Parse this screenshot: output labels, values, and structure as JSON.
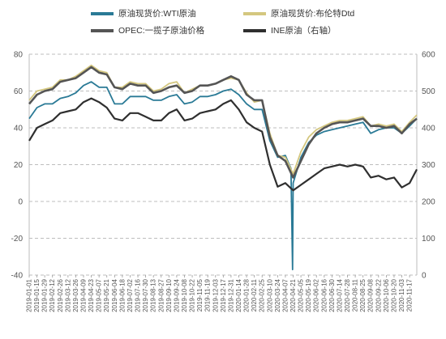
{
  "chart_data": {
    "type": "line",
    "title": "",
    "xlabel": "",
    "ylabel": "",
    "ylim": [
      -40,
      80
    ],
    "y2lim": [
      0,
      600
    ],
    "y_ticks": [
      80,
      60,
      40,
      20,
      0,
      -20,
      -40
    ],
    "y2_ticks": [
      600,
      500,
      400,
      300,
      200,
      100,
      0
    ],
    "grid": "horizontal dashed",
    "legend_position": "top",
    "x_ticks": [
      "2019-01-01",
      "2019-01-15",
      "2019-01-29",
      "2019-02-12",
      "2019-02-26",
      "2019-03-12",
      "2019-03-26",
      "2019-04-09",
      "2019-04-23",
      "2019-05-07",
      "2019-05-21",
      "2019-06-04",
      "2019-06-18",
      "2019-07-02",
      "2019-07-16",
      "2019-07-30",
      "2019-08-13",
      "2019-08-27",
      "2019-09-10",
      "2019-09-24",
      "2019-10-08",
      "2019-10-22",
      "2019-11-05",
      "2019-11-19",
      "2019-12-03",
      "2019-12-17",
      "2019-12-31",
      "2020-01-14",
      "2020-01-28",
      "2020-02-11",
      "2020-02-25",
      "2020-03-10",
      "2020-03-24",
      "2020-04-07",
      "2020-04-21",
      "2020-05-05",
      "2020-05-19",
      "2020-06-02",
      "2020-06-16",
      "2020-06-30",
      "2020-07-14",
      "2020-07-28",
      "2020-08-11",
      "2020-08-25",
      "2020-09-08",
      "2020-09-22",
      "2020-10-06",
      "2020-10-20",
      "2020-11-03",
      "2020-11-17"
    ],
    "series": [
      {
        "name": "原油现货价:WTI原油",
        "axis": "left",
        "color": "#2a7a96",
        "width": 1.8,
        "points": [
          [
            "2019-01-01",
            45
          ],
          [
            "2019-01-15",
            51
          ],
          [
            "2019-01-29",
            53
          ],
          [
            "2019-02-12",
            53
          ],
          [
            "2019-02-26",
            56
          ],
          [
            "2019-03-12",
            57
          ],
          [
            "2019-03-26",
            59
          ],
          [
            "2019-04-09",
            63
          ],
          [
            "2019-04-23",
            65
          ],
          [
            "2019-05-07",
            62
          ],
          [
            "2019-05-21",
            62
          ],
          [
            "2019-06-04",
            53
          ],
          [
            "2019-06-18",
            53
          ],
          [
            "2019-07-02",
            57
          ],
          [
            "2019-07-16",
            57
          ],
          [
            "2019-07-30",
            57
          ],
          [
            "2019-08-13",
            55
          ],
          [
            "2019-08-27",
            55
          ],
          [
            "2019-09-10",
            57
          ],
          [
            "2019-09-24",
            58
          ],
          [
            "2019-10-08",
            53
          ],
          [
            "2019-10-22",
            54
          ],
          [
            "2019-11-05",
            57
          ],
          [
            "2019-11-19",
            57
          ],
          [
            "2019-12-03",
            58
          ],
          [
            "2019-12-17",
            60
          ],
          [
            "2019-12-31",
            61
          ],
          [
            "2020-01-14",
            58
          ],
          [
            "2020-01-28",
            53
          ],
          [
            "2020-02-11",
            50
          ],
          [
            "2020-02-25",
            50
          ],
          [
            "2020-03-10",
            33
          ],
          [
            "2020-03-24",
            24
          ],
          [
            "2020-04-07",
            25
          ],
          [
            "2020-04-14",
            20
          ],
          [
            "2020-04-17",
            18
          ],
          [
            "2020-04-20",
            -37
          ],
          [
            "2020-04-21",
            10
          ],
          [
            "2020-05-05",
            24
          ],
          [
            "2020-05-19",
            32
          ],
          [
            "2020-06-02",
            36
          ],
          [
            "2020-06-16",
            38
          ],
          [
            "2020-06-30",
            39
          ],
          [
            "2020-07-14",
            40
          ],
          [
            "2020-07-28",
            41
          ],
          [
            "2020-08-11",
            42
          ],
          [
            "2020-08-25",
            43
          ],
          [
            "2020-09-08",
            37
          ],
          [
            "2020-09-22",
            39
          ],
          [
            "2020-10-06",
            40
          ],
          [
            "2020-10-20",
            40
          ],
          [
            "2020-11-03",
            37
          ],
          [
            "2020-11-17",
            41
          ],
          [
            "2020-11-30",
            45
          ]
        ]
      },
      {
        "name": "原油现货价:布伦特Dtd",
        "axis": "left",
        "color": "#d4c77f",
        "width": 1.8,
        "points": [
          [
            "2019-01-01",
            55
          ],
          [
            "2019-01-15",
            60
          ],
          [
            "2019-01-29",
            61
          ],
          [
            "2019-02-12",
            62
          ],
          [
            "2019-02-26",
            66
          ],
          [
            "2019-03-12",
            66
          ],
          [
            "2019-03-26",
            68
          ],
          [
            "2019-04-09",
            71
          ],
          [
            "2019-04-23",
            74
          ],
          [
            "2019-05-07",
            71
          ],
          [
            "2019-05-21",
            70
          ],
          [
            "2019-06-04",
            62
          ],
          [
            "2019-06-18",
            62
          ],
          [
            "2019-07-02",
            65
          ],
          [
            "2019-07-16",
            64
          ],
          [
            "2019-07-30",
            64
          ],
          [
            "2019-08-13",
            60
          ],
          [
            "2019-08-27",
            61
          ],
          [
            "2019-09-10",
            64
          ],
          [
            "2019-09-24",
            65
          ],
          [
            "2019-10-08",
            59
          ],
          [
            "2019-10-22",
            61
          ],
          [
            "2019-11-05",
            63
          ],
          [
            "2019-11-19",
            63
          ],
          [
            "2019-12-03",
            64
          ],
          [
            "2019-12-17",
            66
          ],
          [
            "2019-12-31",
            67
          ],
          [
            "2020-01-14",
            66
          ],
          [
            "2020-01-28",
            59
          ],
          [
            "2020-02-11",
            54
          ],
          [
            "2020-02-25",
            55
          ],
          [
            "2020-03-10",
            37
          ],
          [
            "2020-03-24",
            25
          ],
          [
            "2020-04-07",
            24
          ],
          [
            "2020-04-21",
            15
          ],
          [
            "2020-05-05",
            27
          ],
          [
            "2020-05-19",
            35
          ],
          [
            "2020-06-02",
            39
          ],
          [
            "2020-06-16",
            41
          ],
          [
            "2020-06-30",
            43
          ],
          [
            "2020-07-14",
            44
          ],
          [
            "2020-07-28",
            44
          ],
          [
            "2020-08-11",
            45
          ],
          [
            "2020-08-25",
            46
          ],
          [
            "2020-09-08",
            41
          ],
          [
            "2020-09-22",
            42
          ],
          [
            "2020-10-06",
            41
          ],
          [
            "2020-10-20",
            42
          ],
          [
            "2020-11-03",
            38
          ],
          [
            "2020-11-17",
            43
          ],
          [
            "2020-11-30",
            47
          ]
        ]
      },
      {
        "name": "OPEC:一揽子原油价格",
        "axis": "left",
        "color": "#555555",
        "width": 2.6,
        "points": [
          [
            "2019-01-01",
            53
          ],
          [
            "2019-01-15",
            58
          ],
          [
            "2019-01-29",
            60
          ],
          [
            "2019-02-12",
            61
          ],
          [
            "2019-02-26",
            65
          ],
          [
            "2019-03-12",
            66
          ],
          [
            "2019-03-26",
            67
          ],
          [
            "2019-04-09",
            70
          ],
          [
            "2019-04-23",
            73
          ],
          [
            "2019-05-07",
            70
          ],
          [
            "2019-05-21",
            69
          ],
          [
            "2019-06-04",
            62
          ],
          [
            "2019-06-18",
            61
          ],
          [
            "2019-07-02",
            64
          ],
          [
            "2019-07-16",
            63
          ],
          [
            "2019-07-30",
            63
          ],
          [
            "2019-08-13",
            59
          ],
          [
            "2019-08-27",
            60
          ],
          [
            "2019-09-10",
            62
          ],
          [
            "2019-09-24",
            63
          ],
          [
            "2019-10-08",
            59
          ],
          [
            "2019-10-22",
            60
          ],
          [
            "2019-11-05",
            63
          ],
          [
            "2019-11-19",
            63
          ],
          [
            "2019-12-03",
            64
          ],
          [
            "2019-12-17",
            66
          ],
          [
            "2019-12-31",
            68
          ],
          [
            "2020-01-14",
            66
          ],
          [
            "2020-01-28",
            58
          ],
          [
            "2020-02-11",
            55
          ],
          [
            "2020-02-25",
            55
          ],
          [
            "2020-03-10",
            35
          ],
          [
            "2020-03-24",
            25
          ],
          [
            "2020-04-07",
            22
          ],
          [
            "2020-04-21",
            13
          ],
          [
            "2020-05-05",
            22
          ],
          [
            "2020-05-19",
            31
          ],
          [
            "2020-06-02",
            37
          ],
          [
            "2020-06-16",
            40
          ],
          [
            "2020-06-30",
            42
          ],
          [
            "2020-07-14",
            43
          ],
          [
            "2020-07-28",
            43
          ],
          [
            "2020-08-11",
            44
          ],
          [
            "2020-08-25",
            45
          ],
          [
            "2020-09-08",
            41
          ],
          [
            "2020-09-22",
            41
          ],
          [
            "2020-10-06",
            40
          ],
          [
            "2020-10-20",
            41
          ],
          [
            "2020-11-03",
            37
          ],
          [
            "2020-11-17",
            42
          ],
          [
            "2020-11-30",
            45
          ]
        ]
      },
      {
        "name": "INE原油（右轴）",
        "axis": "right",
        "color": "#2f2f2f",
        "width": 2.2,
        "points": [
          [
            "2019-01-01",
            365
          ],
          [
            "2019-01-15",
            400
          ],
          [
            "2019-01-29",
            410
          ],
          [
            "2019-02-12",
            420
          ],
          [
            "2019-02-26",
            440
          ],
          [
            "2019-03-12",
            445
          ],
          [
            "2019-03-26",
            450
          ],
          [
            "2019-04-09",
            470
          ],
          [
            "2019-04-23",
            480
          ],
          [
            "2019-05-07",
            470
          ],
          [
            "2019-05-21",
            455
          ],
          [
            "2019-06-04",
            425
          ],
          [
            "2019-06-18",
            420
          ],
          [
            "2019-07-02",
            440
          ],
          [
            "2019-07-16",
            440
          ],
          [
            "2019-07-30",
            430
          ],
          [
            "2019-08-13",
            420
          ],
          [
            "2019-08-27",
            420
          ],
          [
            "2019-09-10",
            440
          ],
          [
            "2019-09-24",
            450
          ],
          [
            "2019-10-08",
            420
          ],
          [
            "2019-10-22",
            425
          ],
          [
            "2019-11-05",
            440
          ],
          [
            "2019-11-19",
            445
          ],
          [
            "2019-12-03",
            450
          ],
          [
            "2019-12-17",
            465
          ],
          [
            "2019-12-31",
            475
          ],
          [
            "2020-01-14",
            450
          ],
          [
            "2020-01-28",
            415
          ],
          [
            "2020-02-11",
            400
          ],
          [
            "2020-02-25",
            390
          ],
          [
            "2020-03-10",
            300
          ],
          [
            "2020-03-24",
            240
          ],
          [
            "2020-04-07",
            250
          ],
          [
            "2020-04-21",
            230
          ],
          [
            "2020-05-05",
            245
          ],
          [
            "2020-05-19",
            260
          ],
          [
            "2020-06-02",
            275
          ],
          [
            "2020-06-16",
            290
          ],
          [
            "2020-06-30",
            295
          ],
          [
            "2020-07-14",
            300
          ],
          [
            "2020-07-28",
            295
          ],
          [
            "2020-08-11",
            300
          ],
          [
            "2020-08-25",
            295
          ],
          [
            "2020-09-08",
            265
          ],
          [
            "2020-09-22",
            270
          ],
          [
            "2020-10-06",
            260
          ],
          [
            "2020-10-20",
            265
          ],
          [
            "2020-11-03",
            238
          ],
          [
            "2020-11-17",
            250
          ],
          [
            "2020-11-30",
            287
          ]
        ]
      }
    ]
  }
}
